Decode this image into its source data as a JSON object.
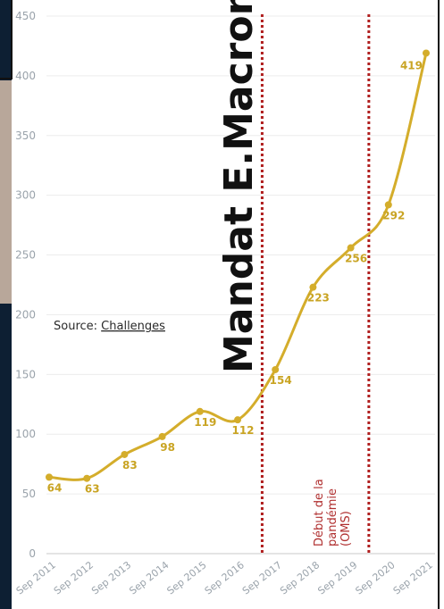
{
  "chart_data": {
    "type": "line",
    "x": [
      "Sep 2011",
      "Sep 2012",
      "Sep 2013",
      "Sep 2014",
      "Sep 2015",
      "Sep 2016",
      "Sep 2017",
      "Sep 2018",
      "Sep 2019",
      "Sep 2020",
      "Sep 2021"
    ],
    "series": [
      {
        "values": [
          64,
          63,
          83,
          98,
          119,
          112,
          154,
          223,
          256,
          292,
          419
        ]
      }
    ],
    "ylim": [
      0,
      450
    ],
    "yticks": [
      0,
      50,
      100,
      150,
      200,
      250,
      300,
      350,
      400,
      450
    ],
    "grid": true,
    "line_color": "#d4ad2b",
    "annotations": {
      "mandate": "Mandat E.Macron",
      "pandemic_lines": [
        "Début de la",
        "pandémie",
        "(OMS)"
      ],
      "source_prefix": "Source: ",
      "source_name": "Challenges"
    },
    "marker_color": "#b01e1e"
  }
}
